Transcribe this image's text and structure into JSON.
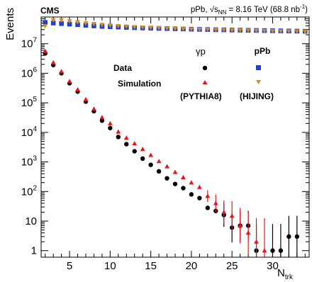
{
  "chart_data": {
    "type": "scatter",
    "experiment": "CMS",
    "energy_text": "pPb, √s",
    "energy_subscript": "NN",
    "energy_value": " = 8.16 TeV (68.8 nb",
    "energy_superscript": "-1",
    "energy_close": ")",
    "ylabel": "Events",
    "xlabel_main": "N",
    "xlabel_sub": "trk",
    "xlim": [
      1.5,
      34.5
    ],
    "ylim": [
      0.6,
      80000000
    ],
    "yscale": "log",
    "grid": false,
    "x_tick_labels": [
      "5",
      "10",
      "15",
      "20",
      "25",
      "30"
    ],
    "y_tick_labels": [
      {
        "value": 1,
        "base": "1",
        "exp": ""
      },
      {
        "value": 10,
        "base": "10",
        "exp": ""
      },
      {
        "value": 100,
        "base": "10",
        "exp": "2"
      },
      {
        "value": 1000,
        "base": "10",
        "exp": "3"
      },
      {
        "value": 10000,
        "base": "10",
        "exp": "4"
      },
      {
        "value": 100000,
        "base": "10",
        "exp": "5"
      },
      {
        "value": 1000000,
        "base": "10",
        "exp": "6"
      },
      {
        "value": 10000000,
        "base": "10",
        "exp": "7"
      }
    ],
    "legend": {
      "row_data": "Data",
      "row_sim": "Simulation",
      "col_gp": "γp",
      "col_ppb": "pPb",
      "gen_gp": "(PYTHIA8)",
      "gen_ppb": "(HIJING)"
    },
    "series": [
      {
        "name": "γp Data",
        "marker": "circle",
        "color": "#000000",
        "x": [
          2,
          3,
          4,
          5,
          6,
          7,
          8,
          9,
          10,
          11,
          12,
          13,
          14,
          15,
          16,
          17,
          18,
          19,
          20,
          21,
          22,
          23,
          24,
          25,
          26,
          27,
          28,
          30,
          31,
          32,
          33
        ],
        "y": [
          4700000,
          1900000,
          1000000,
          460000,
          240000,
          110000,
          52000,
          25000,
          14000,
          7000,
          4000,
          2300,
          1300,
          800,
          480,
          280,
          180,
          130,
          80,
          60,
          28,
          22,
          16,
          6,
          7,
          7,
          1,
          1,
          1,
          3,
          3
        ],
        "err": [
          0,
          0,
          0,
          0,
          0,
          0,
          0,
          0,
          0,
          0,
          0,
          0,
          0,
          0,
          0,
          0,
          0,
          0,
          0,
          0,
          0,
          0,
          0.4,
          0.5,
          0.5,
          0.5,
          0.9,
          0.9,
          0.9,
          0.7,
          0.7
        ]
      },
      {
        "name": "γp Simulation",
        "marker": "triangle-up",
        "color": "#e8141c",
        "x": [
          2,
          3,
          4,
          5,
          6,
          7,
          8,
          9,
          10,
          11,
          12,
          13,
          14,
          15,
          16,
          17,
          18,
          19,
          20,
          21,
          22,
          23,
          24,
          25,
          26,
          27,
          28,
          29
        ],
        "y": [
          5600000,
          2300000,
          1150000,
          530000,
          280000,
          130000,
          62000,
          32000,
          20000,
          10500,
          6500,
          4200,
          2700,
          1700,
          1050,
          700,
          450,
          300,
          200,
          140,
          70,
          40,
          20,
          15,
          7,
          4,
          2,
          1
        ],
        "err": [
          0,
          0,
          0,
          0,
          0,
          0,
          0,
          0,
          0,
          0,
          0,
          0,
          0,
          0,
          0,
          0,
          0,
          0,
          0,
          0,
          0.2,
          0.3,
          0.4,
          0.5,
          0.6,
          0.7,
          0.8,
          1.1
        ]
      },
      {
        "name": "pPb Data",
        "marker": "square",
        "color": "#1f3fd6",
        "x": [
          2,
          3,
          4,
          5,
          6,
          7,
          8,
          9,
          10,
          11,
          12,
          13,
          14,
          15,
          16,
          17,
          18,
          19,
          20,
          21,
          22,
          23,
          24,
          25,
          26,
          27,
          28,
          29,
          30,
          31,
          32,
          33,
          34
        ],
        "y": [
          52000000,
          50000000,
          48000000,
          46000000,
          44000000,
          42000000,
          40000000,
          38500000,
          37500000,
          36500000,
          35500000,
          34800000,
          34200000,
          33600000,
          33000000,
          32500000,
          32000000,
          31500000,
          31000000,
          30600000,
          30200000,
          29800000,
          29400000,
          29000000,
          28700000,
          28400000,
          28100000,
          27800000,
          27500000,
          27200000,
          26900000,
          26600000,
          26300000
        ],
        "err": []
      },
      {
        "name": "pPb Simulation",
        "marker": "triangle-down",
        "color": "#d98c1a",
        "x": [
          2,
          3,
          4,
          5,
          6,
          7,
          8,
          9,
          10,
          11,
          12,
          13,
          14,
          15,
          16,
          17,
          18,
          19,
          20,
          21,
          22,
          23,
          24,
          25,
          26,
          27,
          28,
          29,
          30,
          31,
          32,
          33,
          34
        ],
        "y": [
          40000000,
          63000000,
          62000000,
          58000000,
          54000000,
          50000000,
          47000000,
          44000000,
          42000000,
          40000000,
          38500000,
          37000000,
          36000000,
          35000000,
          34000000,
          33200000,
          32500000,
          31800000,
          31200000,
          30600000,
          30100000,
          29600000,
          29200000,
          28800000,
          28400000,
          28000000,
          27700000,
          27400000,
          27100000,
          26800000,
          26500000,
          26200000,
          25900000
        ],
        "err": []
      }
    ]
  }
}
